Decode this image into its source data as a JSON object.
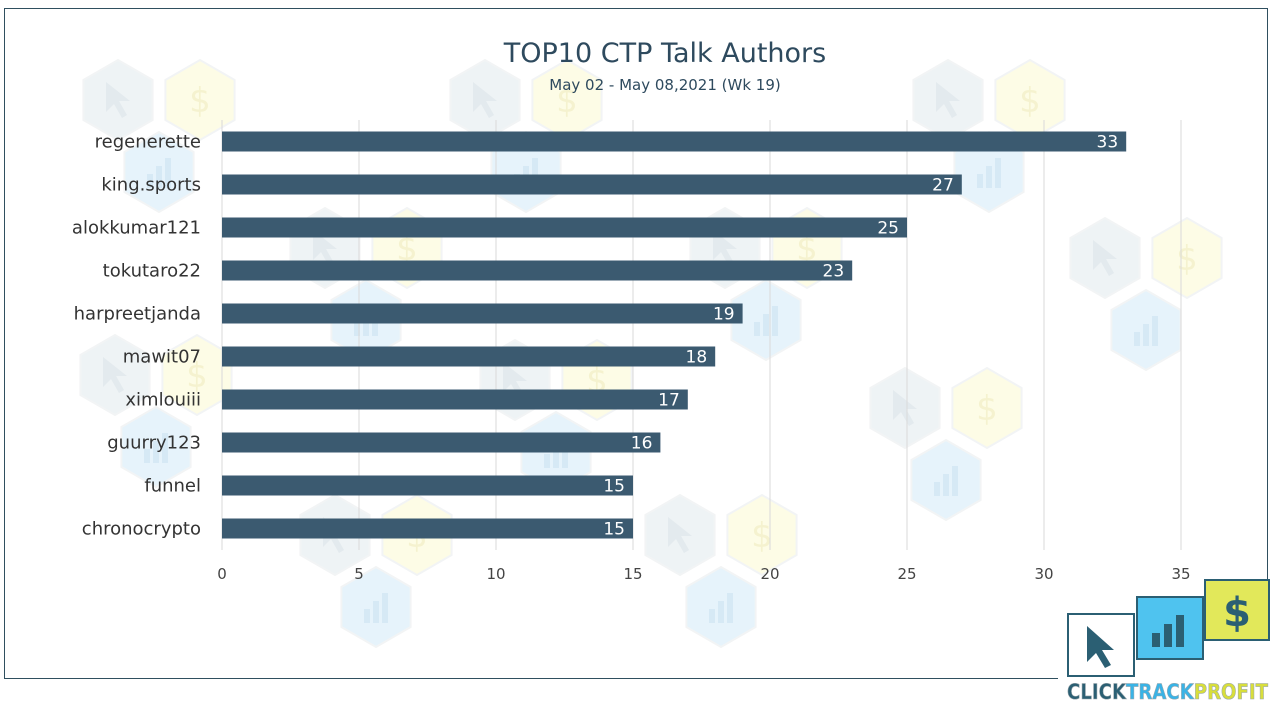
{
  "chart_data": {
    "type": "bar",
    "orientation": "horizontal",
    "title": "TOP10 CTP Talk Authors",
    "subtitle": "May 02 - May 08,2021 (Wk 19)",
    "categories": [
      "regenerette",
      "king.sports",
      "alokkumar121",
      "tokutaro22",
      "harpreetjanda",
      "mawit07",
      "ximlouiii",
      "guurry123",
      "funnel",
      "chronocrypto"
    ],
    "values": [
      33,
      27,
      25,
      23,
      19,
      18,
      17,
      16,
      15,
      15
    ],
    "xlim": [
      0,
      35
    ],
    "xticks": [
      0,
      5,
      10,
      15,
      20,
      25,
      30,
      35
    ],
    "grid": "vertical",
    "legend": "none",
    "bar_color": "#3b5a70",
    "data_labels": "inside-end"
  },
  "logo": {
    "parts": [
      "CLICK",
      "TRACK",
      "PROFIT"
    ],
    "dollar_glyph": "$",
    "colors": {
      "click": "#2b5f73",
      "track": "#39b3e6",
      "profit": "#d8de3b",
      "dollar_bg": "#e2e85a",
      "chart_bg": "#4fc3ef"
    }
  },
  "watermark": {
    "colors": {
      "cursor": "#eef3f5",
      "dollar": "#fdfce6",
      "chart": "#e6f3fb"
    },
    "dollar_glyph": "$"
  }
}
